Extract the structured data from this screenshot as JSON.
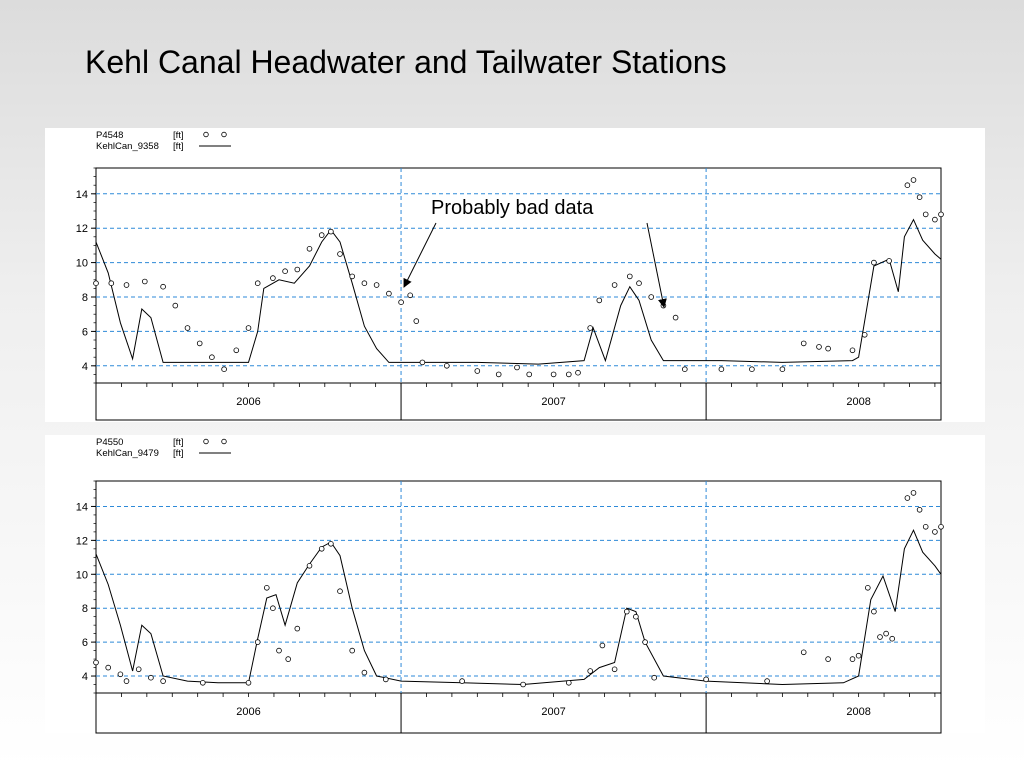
{
  "slide": {
    "title": "Kehl Canal Headwater and Tailwater Stations"
  },
  "annotation": {
    "text": "Probably bad data"
  },
  "chart_data": [
    {
      "type": "line",
      "ylim": [
        3,
        15.5
      ],
      "yticks": [
        4,
        6,
        8,
        10,
        12,
        14
      ],
      "x_range_years": [
        2005.5,
        2008.27
      ],
      "year_ticks": [
        2006,
        2007,
        2008
      ],
      "year_labels": [
        "2006",
        "2007",
        "2008"
      ],
      "grid": true,
      "legend_position": "top-left",
      "legend": [
        {
          "name": "P4548",
          "unit": "[ft]",
          "marker": "o  o"
        },
        {
          "name": "KehlCan_9358",
          "unit": "[ft]",
          "marker": "line"
        }
      ],
      "series": [
        {
          "name": "KehlCan_9358",
          "style": "line",
          "points": [
            [
              2005.5,
              11.2
            ],
            [
              2005.54,
              9.4
            ],
            [
              2005.58,
              6.5
            ],
            [
              2005.62,
              4.4
            ],
            [
              2005.65,
              7.3
            ],
            [
              2005.68,
              6.8
            ],
            [
              2005.72,
              4.2
            ],
            [
              2005.9,
              4.2
            ],
            [
              2006.0,
              4.2
            ],
            [
              2006.03,
              6.0
            ],
            [
              2006.05,
              8.5
            ],
            [
              2006.1,
              9.0
            ],
            [
              2006.15,
              8.8
            ],
            [
              2006.2,
              9.8
            ],
            [
              2006.24,
              11.2
            ],
            [
              2006.27,
              11.9
            ],
            [
              2006.3,
              11.2
            ],
            [
              2006.34,
              8.8
            ],
            [
              2006.38,
              6.3
            ],
            [
              2006.42,
              5.0
            ],
            [
              2006.46,
              4.2
            ],
            [
              2006.75,
              4.2
            ],
            [
              2006.95,
              4.1
            ],
            [
              2007.1,
              4.3
            ],
            [
              2007.13,
              6.2
            ],
            [
              2007.17,
              4.3
            ],
            [
              2007.22,
              7.5
            ],
            [
              2007.25,
              8.6
            ],
            [
              2007.28,
              7.8
            ],
            [
              2007.32,
              5.5
            ],
            [
              2007.36,
              4.3
            ],
            [
              2007.55,
              4.3
            ],
            [
              2007.75,
              4.2
            ],
            [
              2007.98,
              4.3
            ],
            [
              2008.0,
              4.5
            ],
            [
              2008.05,
              9.8
            ],
            [
              2008.1,
              10.2
            ],
            [
              2008.13,
              8.3
            ],
            [
              2008.15,
              11.5
            ],
            [
              2008.18,
              12.5
            ],
            [
              2008.21,
              11.3
            ],
            [
              2008.25,
              10.5
            ],
            [
              2008.27,
              10.2
            ]
          ]
        },
        {
          "name": "P4548",
          "style": "circles",
          "points": [
            [
              2005.5,
              8.8
            ],
            [
              2005.55,
              8.8
            ],
            [
              2005.6,
              8.7
            ],
            [
              2005.66,
              8.9
            ],
            [
              2005.72,
              8.6
            ],
            [
              2005.76,
              7.5
            ],
            [
              2005.8,
              6.2
            ],
            [
              2005.84,
              5.3
            ],
            [
              2005.88,
              4.5
            ],
            [
              2005.92,
              3.8
            ],
            [
              2005.96,
              4.9
            ],
            [
              2006.0,
              6.2
            ],
            [
              2006.03,
              8.8
            ],
            [
              2006.08,
              9.1
            ],
            [
              2006.12,
              9.5
            ],
            [
              2006.16,
              9.6
            ],
            [
              2006.2,
              10.8
            ],
            [
              2006.24,
              11.6
            ],
            [
              2006.27,
              11.8
            ],
            [
              2006.3,
              10.5
            ],
            [
              2006.34,
              9.2
            ],
            [
              2006.38,
              8.8
            ],
            [
              2006.42,
              8.7
            ],
            [
              2006.46,
              8.2
            ],
            [
              2006.5,
              7.7
            ],
            [
              2006.53,
              8.1
            ],
            [
              2006.55,
              6.6
            ],
            [
              2006.57,
              4.2
            ],
            [
              2006.65,
              4.0
            ],
            [
              2006.75,
              3.7
            ],
            [
              2006.82,
              3.5
            ],
            [
              2006.88,
              3.9
            ],
            [
              2006.92,
              3.5
            ],
            [
              2007.0,
              3.5
            ],
            [
              2007.05,
              3.5
            ],
            [
              2007.08,
              3.6
            ],
            [
              2007.12,
              6.2
            ],
            [
              2007.15,
              7.8
            ],
            [
              2007.2,
              8.7
            ],
            [
              2007.25,
              9.2
            ],
            [
              2007.28,
              8.8
            ],
            [
              2007.32,
              8.0
            ],
            [
              2007.36,
              7.5
            ],
            [
              2007.4,
              6.8
            ],
            [
              2007.43,
              3.8
            ],
            [
              2007.55,
              3.8
            ],
            [
              2007.65,
              3.8
            ],
            [
              2007.75,
              3.8
            ],
            [
              2007.82,
              5.3
            ],
            [
              2007.87,
              5.1
            ],
            [
              2007.9,
              5.0
            ],
            [
              2007.98,
              4.9
            ],
            [
              2008.02,
              5.8
            ],
            [
              2008.05,
              10.0
            ],
            [
              2008.1,
              10.1
            ],
            [
              2008.16,
              14.5
            ],
            [
              2008.18,
              14.8
            ],
            [
              2008.2,
              13.8
            ],
            [
              2008.22,
              12.8
            ],
            [
              2008.25,
              12.5
            ],
            [
              2008.27,
              12.8
            ]
          ]
        }
      ]
    },
    {
      "type": "line",
      "ylim": [
        3,
        15.5
      ],
      "yticks": [
        4,
        6,
        8,
        10,
        12,
        14
      ],
      "x_range_years": [
        2005.5,
        2008.27
      ],
      "year_ticks": [
        2006,
        2007,
        2008
      ],
      "year_labels": [
        "2006",
        "2007",
        "2008"
      ],
      "grid": true,
      "legend_position": "top-left",
      "legend": [
        {
          "name": "P4550",
          "unit": "[ft]",
          "marker": "o  o"
        },
        {
          "name": "KehlCan_9479",
          "unit": "[ft]",
          "marker": "line"
        }
      ],
      "series": [
        {
          "name": "KehlCan_9479",
          "style": "line",
          "points": [
            [
              2005.5,
              11.2
            ],
            [
              2005.54,
              9.4
            ],
            [
              2005.58,
              7.0
            ],
            [
              2005.62,
              4.3
            ],
            [
              2005.65,
              7.0
            ],
            [
              2005.68,
              6.5
            ],
            [
              2005.72,
              4.0
            ],
            [
              2005.8,
              3.7
            ],
            [
              2005.9,
              3.6
            ],
            [
              2006.0,
              3.6
            ],
            [
              2006.03,
              6.2
            ],
            [
              2006.06,
              8.6
            ],
            [
              2006.09,
              8.8
            ],
            [
              2006.12,
              7.0
            ],
            [
              2006.16,
              9.5
            ],
            [
              2006.2,
              10.6
            ],
            [
              2006.24,
              11.6
            ],
            [
              2006.27,
              11.9
            ],
            [
              2006.3,
              11.1
            ],
            [
              2006.34,
              8.0
            ],
            [
              2006.38,
              5.5
            ],
            [
              2006.42,
              4.0
            ],
            [
              2006.5,
              3.7
            ],
            [
              2006.7,
              3.6
            ],
            [
              2006.9,
              3.5
            ],
            [
              2007.1,
              3.8
            ],
            [
              2007.15,
              4.5
            ],
            [
              2007.2,
              4.8
            ],
            [
              2007.24,
              8.0
            ],
            [
              2007.27,
              7.8
            ],
            [
              2007.3,
              6.0
            ],
            [
              2007.36,
              4.0
            ],
            [
              2007.5,
              3.7
            ],
            [
              2007.75,
              3.5
            ],
            [
              2007.95,
              3.6
            ],
            [
              2008.0,
              4.0
            ],
            [
              2008.04,
              8.5
            ],
            [
              2008.08,
              9.9
            ],
            [
              2008.12,
              7.8
            ],
            [
              2008.15,
              11.5
            ],
            [
              2008.18,
              12.6
            ],
            [
              2008.21,
              11.3
            ],
            [
              2008.25,
              10.5
            ],
            [
              2008.27,
              10.0
            ]
          ]
        },
        {
          "name": "P4550",
          "style": "circles",
          "points": [
            [
              2005.5,
              4.8
            ],
            [
              2005.54,
              4.5
            ],
            [
              2005.58,
              4.1
            ],
            [
              2005.6,
              3.7
            ],
            [
              2005.64,
              4.4
            ],
            [
              2005.68,
              3.9
            ],
            [
              2005.72,
              3.7
            ],
            [
              2005.85,
              3.6
            ],
            [
              2006.0,
              3.6
            ],
            [
              2006.03,
              6.0
            ],
            [
              2006.06,
              9.2
            ],
            [
              2006.08,
              8.0
            ],
            [
              2006.1,
              5.5
            ],
            [
              2006.13,
              5.0
            ],
            [
              2006.16,
              6.8
            ],
            [
              2006.2,
              10.5
            ],
            [
              2006.24,
              11.5
            ],
            [
              2006.27,
              11.8
            ],
            [
              2006.3,
              9.0
            ],
            [
              2006.34,
              5.5
            ],
            [
              2006.38,
              4.2
            ],
            [
              2006.45,
              3.8
            ],
            [
              2006.7,
              3.7
            ],
            [
              2006.9,
              3.5
            ],
            [
              2007.05,
              3.6
            ],
            [
              2007.12,
              4.3
            ],
            [
              2007.16,
              5.8
            ],
            [
              2007.2,
              4.4
            ],
            [
              2007.24,
              7.8
            ],
            [
              2007.27,
              7.5
            ],
            [
              2007.3,
              6.0
            ],
            [
              2007.33,
              3.9
            ],
            [
              2007.5,
              3.8
            ],
            [
              2007.7,
              3.7
            ],
            [
              2007.82,
              5.4
            ],
            [
              2007.9,
              5.0
            ],
            [
              2007.98,
              5.0
            ],
            [
              2008.0,
              5.2
            ],
            [
              2008.03,
              9.2
            ],
            [
              2008.05,
              7.8
            ],
            [
              2008.07,
              6.3
            ],
            [
              2008.09,
              6.5
            ],
            [
              2008.11,
              6.2
            ],
            [
              2008.16,
              14.5
            ],
            [
              2008.18,
              14.8
            ],
            [
              2008.2,
              13.8
            ],
            [
              2008.22,
              12.8
            ],
            [
              2008.25,
              12.5
            ],
            [
              2008.27,
              12.8
            ]
          ]
        }
      ]
    }
  ]
}
